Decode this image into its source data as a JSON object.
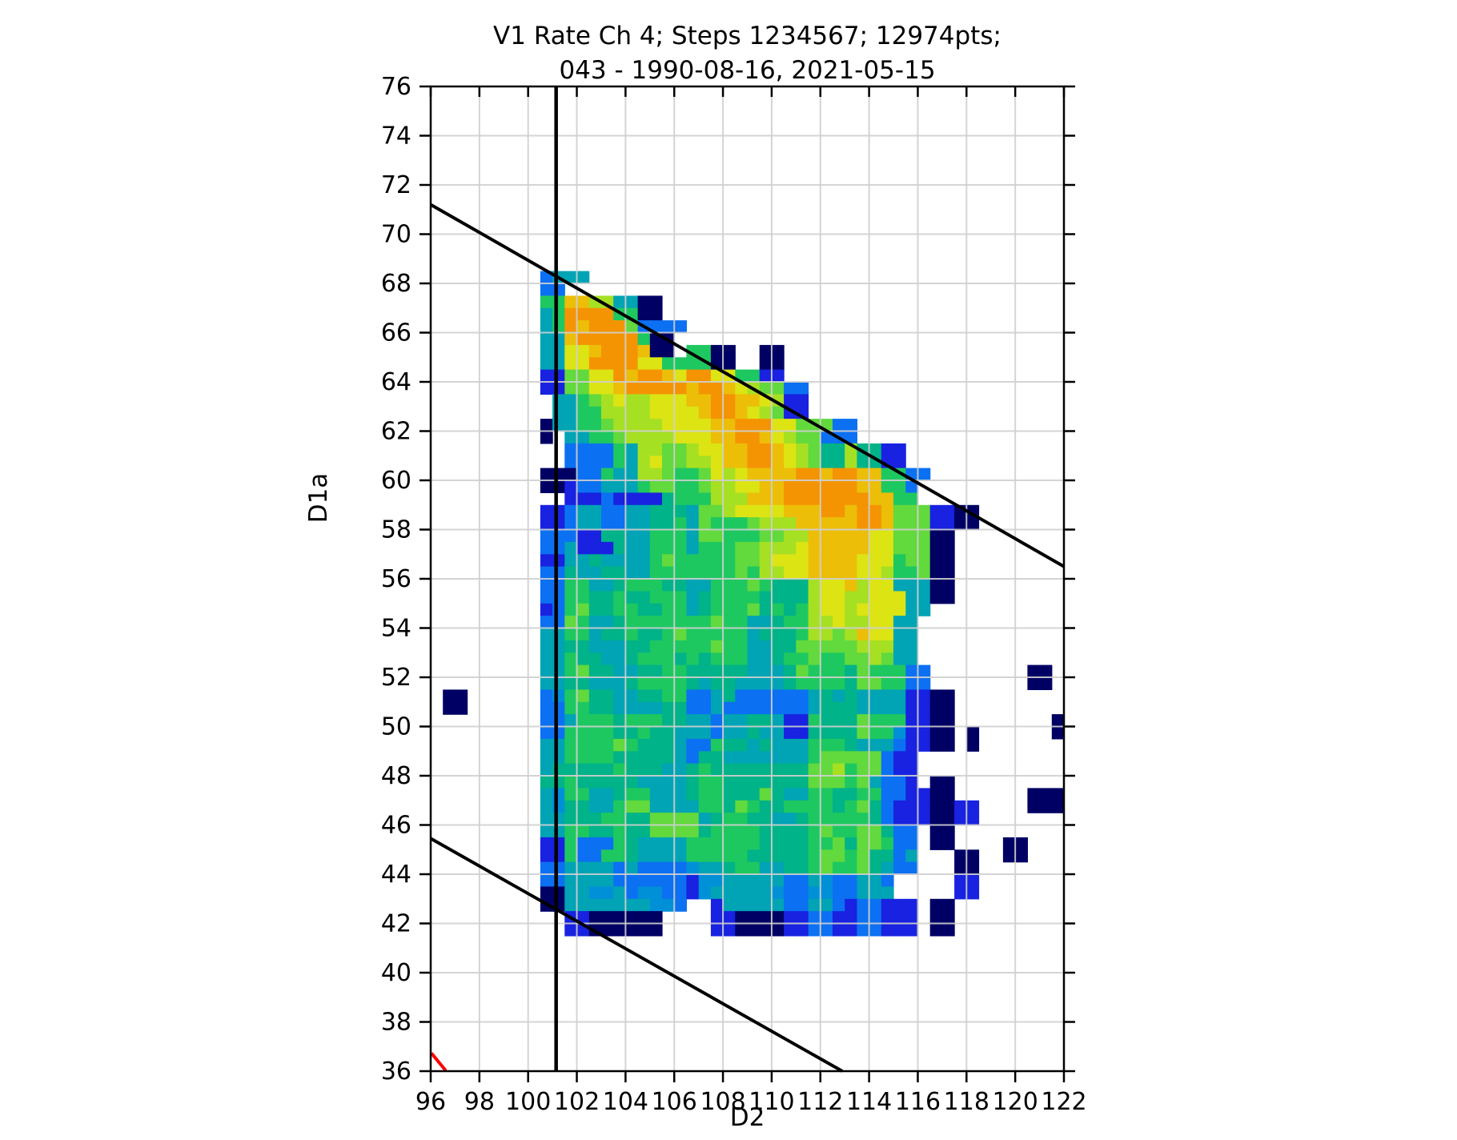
{
  "title_line1": "V1 Rate Ch 4; Steps 1234567; 12974pts;",
  "title_line2": "043 - 1990-08-16, 2021-05-15",
  "chart_data": {
    "type": "heatmap",
    "title": "V1 Rate Ch 4; Steps 1234567; 12974pts; 043 - 1990-08-16, 2021-05-15",
    "xlabel": "D2",
    "ylabel": "D1a",
    "xlim": [
      96,
      122
    ],
    "ylim": [
      36,
      76
    ],
    "xticks": [
      96,
      98,
      100,
      102,
      104,
      106,
      108,
      110,
      112,
      114,
      116,
      118,
      120,
      122
    ],
    "yticks": [
      36,
      38,
      40,
      42,
      44,
      46,
      48,
      50,
      52,
      54,
      56,
      58,
      60,
      62,
      64,
      66,
      68,
      70,
      72,
      74,
      76
    ],
    "grid": true,
    "grid_color": "#cfcfcf",
    "background": "#ffffff",
    "cell_size": 0.5,
    "palette": {
      "1": "#000064",
      "2": "#1822e0",
      "3": "#0c70f2",
      "4": "#0090d8",
      "5": "#00a4b4",
      "6": "#00b388",
      "7": "#1ec860",
      "8": "#62d93c",
      "9": "#a6e022",
      "a": "#dce414",
      "b": "#ecbe08",
      "c": "#f49403",
      "d": "#f87600"
    },
    "heatmap": {
      "x_start": 96.0,
      "y_top": 68.5,
      "rows": [
        ".........3555.......................................",
        ".........33.........................................",
        ".........77bb995511.................................",
        ".........57cccc7711.................................",
        ".........57cbccc83333...............................",
        ".........55bccccc711................................",
        ".........55aabcccb11.7711..11.......................",
        ".........55aaccccaa777711..11.......................",
        ".........2288aacbccbaccaa7722.......................",
        ".........2288aabcccccbccba98833.....................",
        "..........55789a99aaabbccbba922.....................",
        "..........55779999aaaabccba9822.....................",
        ".........1557789999aaaabbcccaa88833.................",
        ".........1.557789999aaabbccba988333.................",
        "...........33337599889aabbccba986696622.............",
        "...........3333759a8899abbccba986696622.............",
        ".........11133755998778a9abbbbccbccbb7733...........",
        ".........1123355578877899aabbccccccbb773............",
        "...........222322226777999bbbcccccccbb77............",
        ".........2235533556665889aaaabbbccbccb8882211.......",
        ".........223553355667587778999bbbbbccb8882211.......",
        ".........3332266557775887778899bbbbbaa88811.........",
        ".........335222655777577788999abbbbbaa88811.........",
        ".........2255655557877777889aaabbbbaaa78811.........",
        ".........33655665577777778799aabbbbaa977811.........",
        ".........33775567776655777876669aab9aa55511.........",
        ".........33776676677756777766669aa99aaa5511.........",
        ".........23786677667756777867679aa9aaaa55...........",
        ".........338755677777778775567799a99aa55............",
        ".........55775667667877777566679989baa55............",
        ".........5566555667777787755668888899955............",
        ".........5576655677767677755677877889855............",
        ".........55786655667766666555687776877733........11.",
        ".........55665556777765665555677776887733........11.",
        ".11......3478665566773356333333565655552211.........",
        ".11......3377665555663353333333566655552211.........",
        ".........3357776777665535566522766687772211........1",
        ".........3377776676655535565522666687742211.1......1",
        ".........5577778766653376656555777655532211.1.......",
        ".........5577776666653665555555788888322............",
        ".........5666667666556766666666889788322............",
        ".........6676666655556776666666888785332.11.........",
        ".........5477556775556776668655776677332211......111",
        ".........546655788555577687667777678632221122....111",
        ".........556667766888856776655677777632221122.......",
        ".........5577667668888677776666787788633.11.........",
        ".........2273337655557777776666778688733.11....11...",
        ".........2273377655557777766666788786635...11..11...",
        ".........3355553533334556775566787786533...11.......",
        ".........33555533333324455555335433553.....22.......",
        ".........11554453443324555554334433555.....22.......",
        ".........115555555443..25555533553233222.11.........",
        "...........22111111....22111122332233222.11.........",
        "...........22111111....22111122332233222.11........."
      ]
    },
    "overlays": {
      "line_color": "#000000",
      "red_color": "#ff0000",
      "lines": [
        {
          "name": "diagonal-upper-line",
          "x1": 96,
          "y1": 71.2,
          "x2": 122,
          "y2": 56.5,
          "color": "#000000",
          "width": 4
        },
        {
          "name": "diagonal-lower-line",
          "x1": 96,
          "y1": 45.45,
          "x2": 112.9,
          "y2": 36.0,
          "color": "#000000",
          "width": 4
        },
        {
          "name": "vertical-marker-line",
          "x1": 101.15,
          "y1": 36,
          "x2": 101.15,
          "y2": 76,
          "color": "#000000",
          "width": 4.5
        },
        {
          "name": "red-curve-segment",
          "x1": 96.03,
          "y1": 36.73,
          "x2": 96.62,
          "y2": 36.02,
          "color": "#ff0000",
          "width": 4
        }
      ]
    }
  }
}
